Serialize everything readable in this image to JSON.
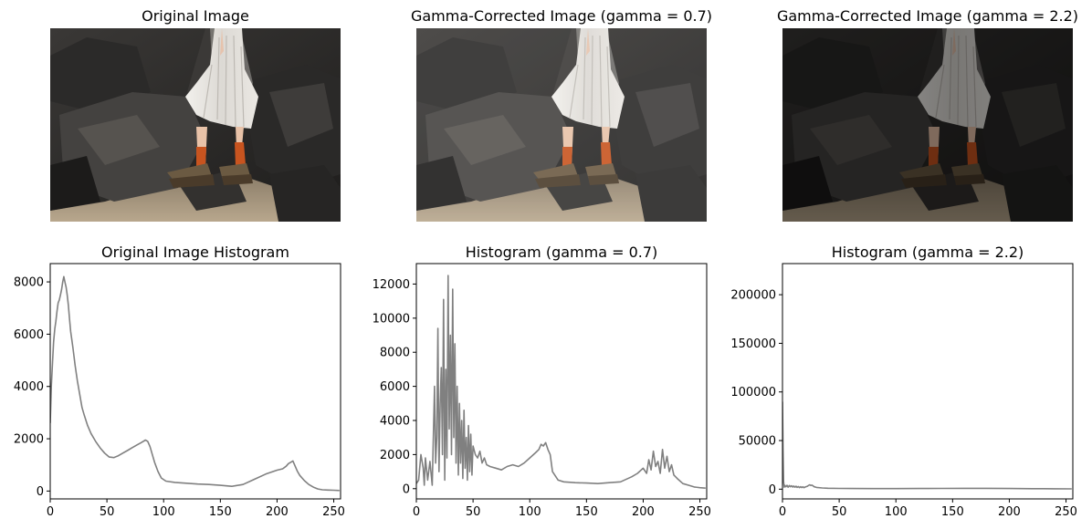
{
  "figure": {
    "panels": [
      {
        "title": "Original Image",
        "image": "woman-in-white-pleated-skirt-on-dark-rocks",
        "tone": "normal"
      },
      {
        "title": "Gamma-Corrected Image (gamma = 0.7)",
        "image": "woman-in-white-pleated-skirt-on-dark-rocks",
        "tone": "brighter"
      },
      {
        "title": "Gamma-Corrected Image (gamma = 2.2)",
        "image": "woman-in-white-pleated-skirt-on-dark-rocks",
        "tone": "darker"
      }
    ]
  },
  "chart_data": [
    {
      "type": "line",
      "title": "Original Image Histogram",
      "xlim": [
        0,
        256
      ],
      "ylim": [
        -300,
        8700
      ],
      "xticks": [
        0,
        50,
        100,
        150,
        200,
        250
      ],
      "yticks": [
        0,
        2000,
        4000,
        6000,
        8000
      ],
      "grid": false,
      "color": "#808080",
      "x": [
        0,
        1,
        2,
        3,
        4,
        5,
        6,
        7,
        8,
        9,
        10,
        11,
        12,
        13,
        14,
        15,
        16,
        17,
        18,
        20,
        22,
        24,
        26,
        28,
        30,
        33,
        36,
        40,
        44,
        48,
        52,
        56,
        60,
        64,
        68,
        72,
        76,
        80,
        84,
        86,
        88,
        90,
        92,
        95,
        98,
        102,
        110,
        120,
        130,
        140,
        150,
        160,
        170,
        180,
        190,
        200,
        205,
        208,
        210,
        212,
        214,
        216,
        218,
        220,
        224,
        228,
        232,
        236,
        240,
        245,
        250,
        255
      ],
      "values": [
        2600,
        4000,
        4900,
        5700,
        6200,
        6500,
        6900,
        7200,
        7300,
        7500,
        7700,
        8000,
        8200,
        8000,
        7800,
        7500,
        7100,
        6600,
        6100,
        5500,
        4800,
        4200,
        3700,
        3200,
        2900,
        2500,
        2200,
        1900,
        1650,
        1450,
        1300,
        1280,
        1350,
        1450,
        1550,
        1650,
        1750,
        1850,
        1950,
        1900,
        1700,
        1400,
        1100,
        750,
        500,
        380,
        330,
        300,
        270,
        250,
        220,
        180,
        250,
        450,
        650,
        800,
        850,
        950,
        1050,
        1100,
        1150,
        950,
        750,
        600,
        400,
        250,
        150,
        80,
        50,
        40,
        30,
        20
      ]
    },
    {
      "type": "line",
      "title": "Histogram (gamma = 0.7)",
      "xlim": [
        0,
        256
      ],
      "ylim": [
        -600,
        13200
      ],
      "xticks": [
        0,
        50,
        100,
        150,
        200,
        250
      ],
      "yticks": [
        0,
        2000,
        4000,
        6000,
        8000,
        10000,
        12000
      ],
      "grid": false,
      "color": "#808080",
      "x": [
        0,
        2,
        4,
        6,
        7,
        8,
        10,
        12,
        14,
        16,
        17,
        18,
        19,
        20,
        21,
        22,
        23,
        24,
        25,
        26,
        27,
        28,
        29,
        30,
        31,
        32,
        33,
        34,
        35,
        36,
        37,
        38,
        39,
        40,
        41,
        42,
        43,
        44,
        45,
        46,
        47,
        48,
        49,
        50,
        52,
        54,
        56,
        58,
        60,
        62,
        65,
        70,
        75,
        80,
        85,
        90,
        95,
        100,
        105,
        108,
        110,
        112,
        114,
        116,
        118,
        120,
        125,
        130,
        140,
        150,
        160,
        170,
        180,
        190,
        195,
        200,
        203,
        205,
        207,
        209,
        211,
        213,
        215,
        217,
        219,
        221,
        223,
        225,
        227,
        230,
        235,
        240,
        245,
        250,
        255
      ],
      "values": [
        300,
        500,
        2000,
        1200,
        200,
        1800,
        500,
        1600,
        200,
        6000,
        1500,
        3000,
        9400,
        1000,
        5000,
        7100,
        2000,
        11100,
        500,
        7000,
        1800,
        12500,
        3500,
        9000,
        2000,
        11700,
        3000,
        8500,
        1500,
        6000,
        800,
        5000,
        1500,
        4000,
        600,
        4600,
        1200,
        3000,
        500,
        3700,
        1000,
        3200,
        800,
        2500,
        2000,
        1800,
        2200,
        1500,
        1800,
        1400,
        1300,
        1200,
        1100,
        1300,
        1400,
        1300,
        1500,
        1800,
        2100,
        2300,
        2600,
        2500,
        2700,
        2300,
        2000,
        1000,
        500,
        400,
        350,
        330,
        300,
        350,
        400,
        700,
        900,
        1200,
        900,
        1700,
        1100,
        2200,
        1300,
        1600,
        900,
        2300,
        1200,
        1900,
        1000,
        1400,
        800,
        600,
        300,
        200,
        100,
        60,
        30
      ]
    },
    {
      "type": "line",
      "title": "Histogram (gamma = 2.2)",
      "xlim": [
        0,
        256
      ],
      "ylim": [
        -10000,
        232000
      ],
      "xticks": [
        0,
        50,
        100,
        150,
        200,
        250
      ],
      "yticks": [
        0,
        50000,
        100000,
        150000,
        200000
      ],
      "grid": false,
      "color": "#808080",
      "x": [
        0,
        0.5,
        1,
        1.5,
        2,
        3,
        4,
        5,
        6,
        7,
        8,
        9,
        10,
        11,
        12,
        13,
        14,
        15,
        16,
        17,
        18,
        19,
        20,
        22,
        24,
        25,
        26,
        28,
        30,
        35,
        40,
        50,
        60,
        80,
        100,
        120,
        140,
        160,
        180,
        200,
        220,
        240,
        255
      ],
      "values": [
        90000,
        40000,
        8000,
        2000,
        4000,
        2500,
        4000,
        2000,
        3800,
        2500,
        3500,
        2200,
        3200,
        2000,
        3000,
        1800,
        2800,
        1500,
        2600,
        1600,
        2500,
        1500,
        2200,
        3000,
        4500,
        3800,
        4200,
        2500,
        1800,
        1300,
        1000,
        800,
        700,
        600,
        600,
        700,
        800,
        900,
        900,
        700,
        500,
        400,
        300
      ]
    }
  ]
}
